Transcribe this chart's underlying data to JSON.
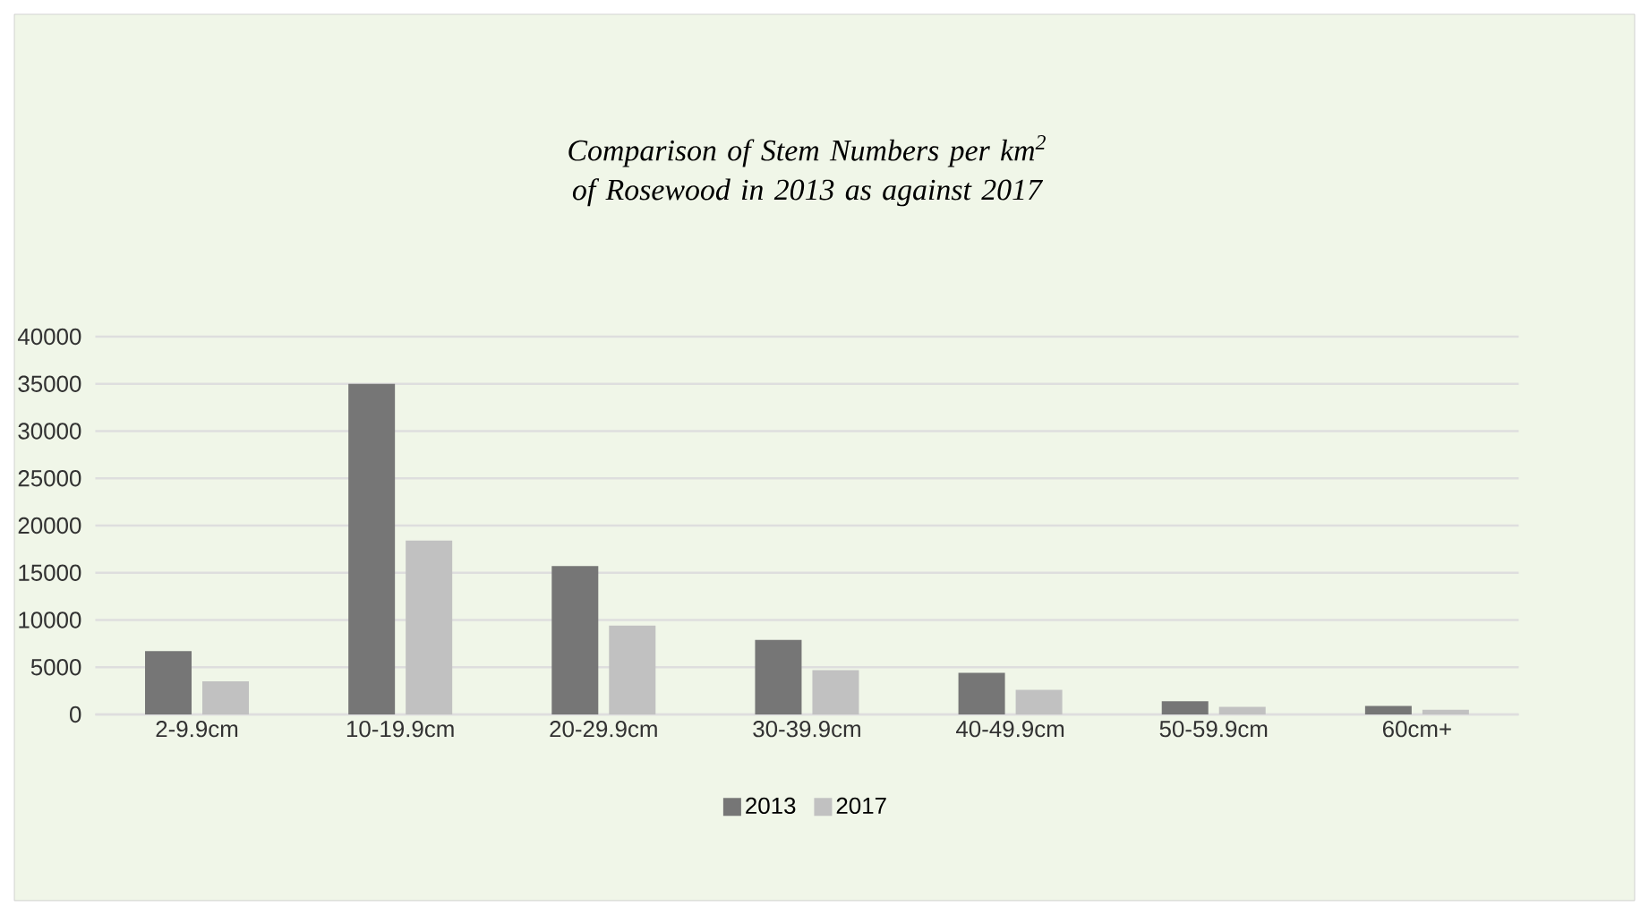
{
  "chart_data": {
    "type": "bar",
    "title": "Comparison of Stem Numbers per km$^{2}$ of Rosewood in 2013 as against 2017",
    "categories": [
      "2-9.9cm",
      "10-19.9cm",
      "20-29.9cm",
      "30-39.9cm",
      "40-49.9cm",
      "50-59.9cm",
      "60cm+"
    ],
    "series": [
      {
        "name": "2013",
        "color": "#767676",
        "values": [
          6700,
          35000,
          15700,
          7900,
          4400,
          1400,
          900
        ]
      },
      {
        "name": "2017",
        "color": "#c1c1c1",
        "values": [
          3500,
          18400,
          9400,
          4700,
          2600,
          800,
          500
        ]
      }
    ],
    "ylim": [
      0,
      40000
    ],
    "yticks": [
      0,
      5000,
      10000,
      15000,
      20000,
      25000,
      30000,
      35000,
      40000
    ],
    "grid": "y",
    "legend": "bottom"
  }
}
